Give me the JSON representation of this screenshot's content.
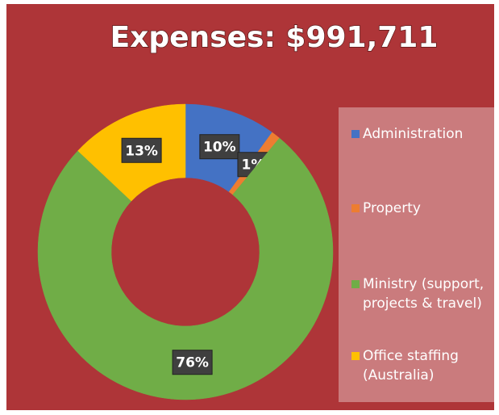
{
  "chart_data": {
    "type": "donut",
    "title": "Expenses: $991,711",
    "categories": [
      "Administration",
      "Property",
      "Ministry (support, projects & travel)",
      "Office staffing (Australia)"
    ],
    "values": [
      10,
      1,
      76,
      13
    ],
    "value_labels": [
      "10%",
      "1%",
      "76%",
      "13%"
    ],
    "colors": [
      "#4472c4",
      "#ed7d31",
      "#70ad47",
      "#ffc000"
    ],
    "legend": "right"
  }
}
